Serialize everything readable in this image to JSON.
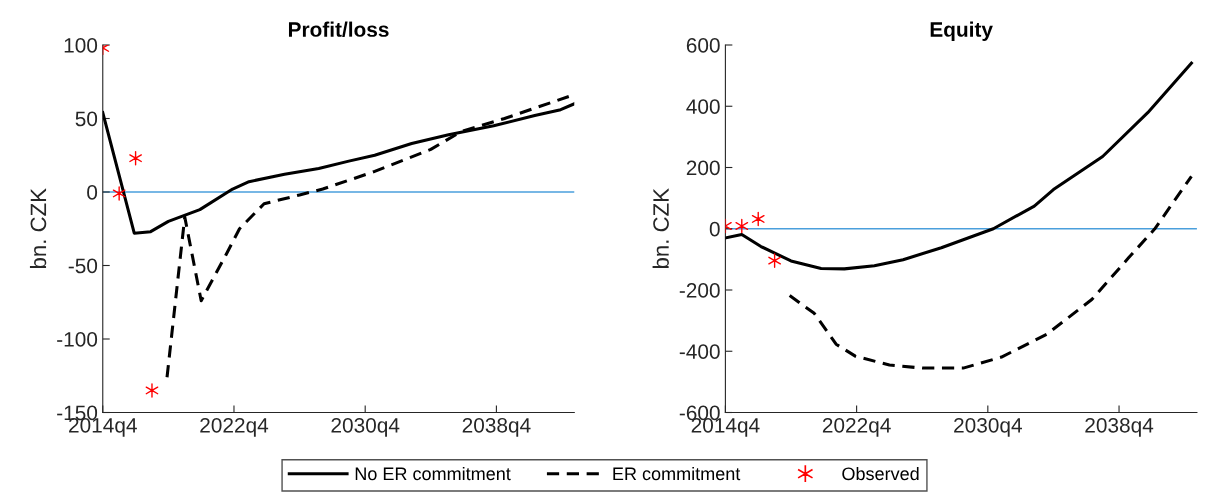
{
  "chart_data": [
    {
      "type": "line",
      "title": "Profit/loss",
      "ylabel": "bn. CZK",
      "xlim": [
        "2014-10",
        "2043-07"
      ],
      "xticks": [
        {
          "value": "2014-10",
          "label": "2014q4"
        },
        {
          "value": "2022-10",
          "label": "2022q4"
        },
        {
          "value": "2030-10",
          "label": "2030q4"
        },
        {
          "value": "2038-10",
          "label": "2038q4"
        }
      ],
      "ylim": [
        -150,
        100
      ],
      "yticks": [
        -150,
        -100,
        -50,
        0,
        50,
        100
      ],
      "grid": false,
      "legend": "bottom",
      "ref_lines": [
        {
          "axis": "y",
          "value": 0,
          "color": "#4a9fdc"
        }
      ],
      "series": [
        {
          "name": "No ER commitment",
          "color": "#000000",
          "line_style": "solid",
          "marker": "none",
          "x": [
            "2014-10",
            "2016-09",
            "2017-09",
            "2018-10",
            "2020-09",
            "2022-09",
            "2023-09",
            "2025-11",
            "2027-12",
            "2029-10",
            "2031-05",
            "2033-08",
            "2035-11",
            "2038-08",
            "2041-02",
            "2042-09",
            "2043-07"
          ],
          "values": [
            54,
            -28,
            -27,
            -20,
            -12,
            2,
            7,
            12,
            16,
            21,
            25,
            33,
            39,
            45,
            52,
            56,
            60
          ]
        },
        {
          "name": "ER commitment",
          "color": "#000000",
          "line_style": "dashed",
          "marker": "none",
          "x": [
            "2018-09",
            "2019-10",
            "2020-10",
            "2022-04",
            "2023-02",
            "2024-08",
            "2026-10",
            "2028-03",
            "2031-05",
            "2034-10",
            "2036-08",
            "2039-04",
            "2043-03"
          ],
          "values": [
            -126,
            -17,
            -74,
            -43,
            -25,
            -8,
            -2,
            2,
            14,
            29,
            41,
            50,
            65
          ]
        },
        {
          "name": "Observed",
          "type": "scatter",
          "color": "#ff0000",
          "marker": "cross",
          "x": [
            "2014-10",
            "2015-10",
            "2016-10",
            "2017-10"
          ],
          "values": [
            98,
            -1,
            23,
            -135
          ]
        }
      ]
    },
    {
      "type": "line",
      "title": "Equity",
      "ylabel": "bn. CZK",
      "xlim": [
        "2014-10",
        "2043-07"
      ],
      "xticks": [
        {
          "value": "2014-10",
          "label": "2014q4"
        },
        {
          "value": "2022-10",
          "label": "2022q4"
        },
        {
          "value": "2030-10",
          "label": "2030q4"
        },
        {
          "value": "2038-10",
          "label": "2038q4"
        }
      ],
      "ylim": [
        -600,
        600
      ],
      "yticks": [
        -600,
        -400,
        -200,
        0,
        200,
        400,
        600
      ],
      "grid": false,
      "ref_lines": [
        {
          "axis": "y",
          "value": 0,
          "color": "#4a9fdc"
        }
      ],
      "series": [
        {
          "color": "#000000",
          "line_style": "solid",
          "marker": "none",
          "x": [
            "2014-10",
            "2015-10",
            "2016-12",
            "2018-10",
            "2020-08",
            "2022-01",
            "2023-11",
            "2025-08",
            "2027-12",
            "2029-10",
            "2031-02",
            "2033-08",
            "2034-10",
            "2037-10",
            "2040-07",
            "2043-03"
          ],
          "values": [
            -30,
            -19,
            -58,
            -105,
            -130,
            -131,
            -121,
            -101,
            -62,
            -26,
            0,
            74,
            128,
            236,
            379,
            541
          ]
        },
        {
          "color": "#000000",
          "line_style": "dashed",
          "marker": "none",
          "x": [
            "2018-09",
            "2019-05",
            "2020-03",
            "2021-07",
            "2022-09",
            "2024-10",
            "2026-10",
            "2029-04",
            "2031-08",
            "2034-05",
            "2037-02",
            "2039-05",
            "2040-12",
            "2043-03"
          ],
          "values": [
            -218,
            -244,
            -276,
            -377,
            -416,
            -445,
            -455,
            -455,
            -419,
            -345,
            -231,
            -95,
            -1,
            171
          ]
        },
        {
          "type": "scatter",
          "color": "#ff0000",
          "marker": "cross",
          "x": [
            "2014-10",
            "2015-10",
            "2016-10",
            "2017-10"
          ],
          "values": [
            9,
            9,
            32,
            -104
          ]
        }
      ]
    }
  ]
}
